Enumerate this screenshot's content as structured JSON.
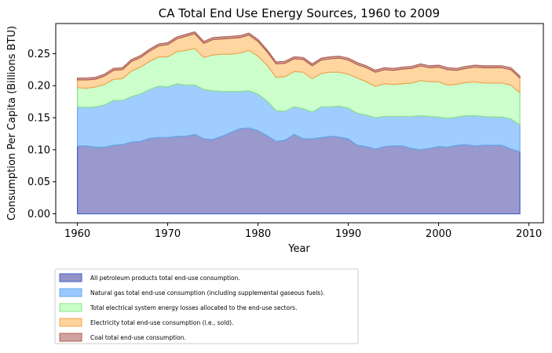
{
  "chart_data": {
    "type": "area",
    "stacked": true,
    "title": "CA Total End Use Energy Sources, 1960 to 2009",
    "xlabel": "Year",
    "ylabel": "Consumption Per Capita (Billions BTU)",
    "xlim": [
      1957.6,
      2011.6
    ],
    "ylim": [
      -0.014,
      0.297
    ],
    "xticks": [
      1960,
      1970,
      1980,
      1990,
      2000,
      2010
    ],
    "yticks": [
      0.0,
      0.05,
      0.1,
      0.15,
      0.2,
      0.25
    ],
    "ytick_labels": [
      "0.00",
      "0.05",
      "0.10",
      "0.15",
      "0.20",
      "0.25"
    ],
    "grid": false,
    "legend_position": "below",
    "x": [
      1960,
      1961,
      1962,
      1963,
      1964,
      1965,
      1966,
      1967,
      1968,
      1969,
      1970,
      1971,
      1972,
      1973,
      1974,
      1975,
      1976,
      1977,
      1978,
      1979,
      1980,
      1981,
      1982,
      1983,
      1984,
      1985,
      1986,
      1987,
      1988,
      1989,
      1990,
      1991,
      1992,
      1993,
      1994,
      1995,
      1996,
      1997,
      1998,
      1999,
      2000,
      2001,
      2002,
      2003,
      2004,
      2005,
      2006,
      2007,
      2008,
      2009
    ],
    "series": [
      {
        "name": "All petroleum products total end-use consumption.",
        "color": "#8080c0",
        "line_color": "#4060c8",
        "values": [
          0.106,
          0.106,
          0.104,
          0.104,
          0.107,
          0.108,
          0.112,
          0.113,
          0.118,
          0.119,
          0.119,
          0.121,
          0.121,
          0.124,
          0.117,
          0.116,
          0.121,
          0.127,
          0.133,
          0.134,
          0.13,
          0.122,
          0.113,
          0.115,
          0.124,
          0.117,
          0.117,
          0.119,
          0.121,
          0.12,
          0.117,
          0.107,
          0.105,
          0.101,
          0.105,
          0.106,
          0.106,
          0.102,
          0.1,
          0.102,
          0.105,
          0.104,
          0.107,
          0.108,
          0.106,
          0.107,
          0.107,
          0.107,
          0.101,
          0.097
        ]
      },
      {
        "name": "Natural gas total end-use consumption (including supplemental gaseous fuels).",
        "color": "#88c0ff",
        "line_color": "#6aaae8",
        "values": [
          0.061,
          0.06,
          0.063,
          0.066,
          0.07,
          0.069,
          0.071,
          0.074,
          0.076,
          0.08,
          0.079,
          0.082,
          0.08,
          0.077,
          0.077,
          0.076,
          0.07,
          0.064,
          0.058,
          0.058,
          0.057,
          0.054,
          0.048,
          0.045,
          0.043,
          0.047,
          0.042,
          0.048,
          0.046,
          0.048,
          0.048,
          0.05,
          0.049,
          0.049,
          0.047,
          0.046,
          0.046,
          0.05,
          0.053,
          0.05,
          0.046,
          0.045,
          0.044,
          0.045,
          0.047,
          0.045,
          0.044,
          0.044,
          0.047,
          0.042
        ]
      },
      {
        "name": "Total electrical system energy losses allocated to the end-use sectors.",
        "color": "#c0ffc0",
        "line_color": "#8ee08e",
        "values": [
          0.03,
          0.03,
          0.031,
          0.032,
          0.033,
          0.034,
          0.04,
          0.042,
          0.044,
          0.046,
          0.047,
          0.05,
          0.054,
          0.057,
          0.05,
          0.056,
          0.058,
          0.058,
          0.06,
          0.063,
          0.059,
          0.056,
          0.052,
          0.054,
          0.055,
          0.057,
          0.052,
          0.052,
          0.054,
          0.053,
          0.053,
          0.055,
          0.052,
          0.049,
          0.051,
          0.05,
          0.051,
          0.052,
          0.055,
          0.054,
          0.055,
          0.052,
          0.051,
          0.052,
          0.053,
          0.052,
          0.053,
          0.053,
          0.053,
          0.05
        ]
      },
      {
        "name": "Electricity total end-use consumption (i.e., sold).",
        "color": "#ffcc88",
        "line_color": "#f2a550",
        "values": [
          0.012,
          0.013,
          0.012,
          0.013,
          0.014,
          0.014,
          0.015,
          0.015,
          0.016,
          0.017,
          0.019,
          0.02,
          0.022,
          0.023,
          0.022,
          0.024,
          0.024,
          0.025,
          0.024,
          0.024,
          0.023,
          0.021,
          0.021,
          0.021,
          0.02,
          0.02,
          0.02,
          0.021,
          0.021,
          0.022,
          0.022,
          0.021,
          0.022,
          0.022,
          0.022,
          0.022,
          0.023,
          0.023,
          0.023,
          0.022,
          0.023,
          0.024,
          0.022,
          0.022,
          0.023,
          0.024,
          0.024,
          0.024,
          0.024,
          0.023
        ]
      },
      {
        "name": "Coal total end-use consumption.",
        "color": "#c89090",
        "line_color": "#b06050",
        "values": [
          0.003,
          0.003,
          0.003,
          0.003,
          0.003,
          0.003,
          0.003,
          0.003,
          0.003,
          0.003,
          0.003,
          0.003,
          0.003,
          0.003,
          0.003,
          0.003,
          0.003,
          0.003,
          0.003,
          0.003,
          0.003,
          0.003,
          0.003,
          0.003,
          0.003,
          0.003,
          0.003,
          0.003,
          0.003,
          0.003,
          0.003,
          0.003,
          0.003,
          0.003,
          0.003,
          0.003,
          0.003,
          0.003,
          0.003,
          0.003,
          0.003,
          0.003,
          0.003,
          0.003,
          0.003,
          0.003,
          0.003,
          0.003,
          0.003,
          0.003
        ]
      }
    ]
  }
}
